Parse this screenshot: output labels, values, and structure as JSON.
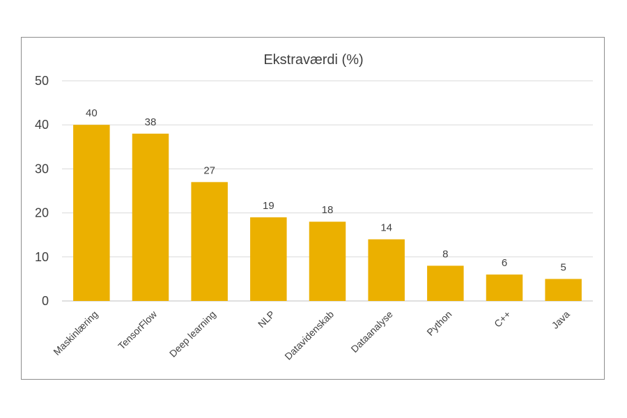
{
  "chart_data": {
    "type": "bar",
    "title": "Ekstraværdi (%)",
    "categories": [
      "Maskinlæring",
      "TensorFlow",
      "Deep learning",
      "NLP",
      "Datavidenskab",
      "Dataanalyse",
      "Python",
      "C++",
      "Java"
    ],
    "values": [
      40,
      38,
      27,
      19,
      18,
      14,
      8,
      6,
      5
    ],
    "data_labels": [
      "40",
      "38",
      "27",
      "19",
      "18",
      "14",
      "8",
      "6",
      "5"
    ],
    "yticks": [
      "0",
      "10",
      "20",
      "30",
      "40",
      "50"
    ],
    "ylim": [
      0,
      50
    ],
    "ystep": 10,
    "grid": true,
    "legend": "none",
    "bar_color": "#ebb000",
    "xlabel": "",
    "ylabel": ""
  }
}
